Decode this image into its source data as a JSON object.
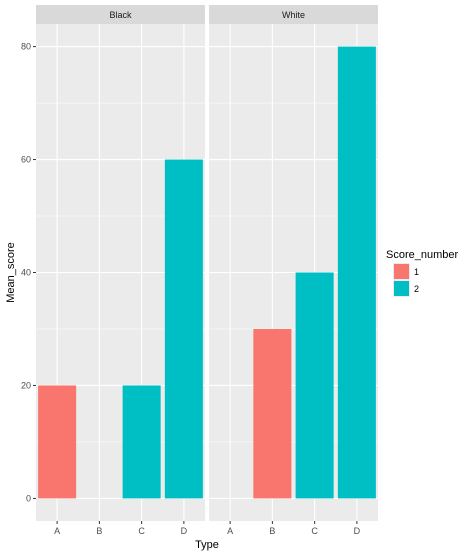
{
  "chart_data": {
    "type": "bar",
    "xlabel": "Type",
    "ylabel": "Mean_score",
    "ylim": [
      -4,
      84
    ],
    "yticks": [
      0,
      20,
      40,
      60,
      80
    ],
    "categories": [
      "A",
      "B",
      "C",
      "D"
    ],
    "legend": {
      "title": "Score_number",
      "placement": "right",
      "entries": [
        {
          "label": "1",
          "color": "#F8766D"
        },
        {
          "label": "2",
          "color": "#00BFC4"
        }
      ]
    },
    "grid": true,
    "facets": [
      {
        "name": "Black",
        "bars": [
          {
            "category": "A",
            "score_number": "1",
            "value": 20
          },
          {
            "category": "C",
            "score_number": "2",
            "value": 20
          },
          {
            "category": "D",
            "score_number": "2",
            "value": 60
          }
        ]
      },
      {
        "name": "White",
        "bars": [
          {
            "category": "B",
            "score_number": "1",
            "value": 30
          },
          {
            "category": "C",
            "score_number": "2",
            "value": 40
          },
          {
            "category": "D",
            "score_number": "2",
            "value": 80
          }
        ]
      }
    ]
  }
}
